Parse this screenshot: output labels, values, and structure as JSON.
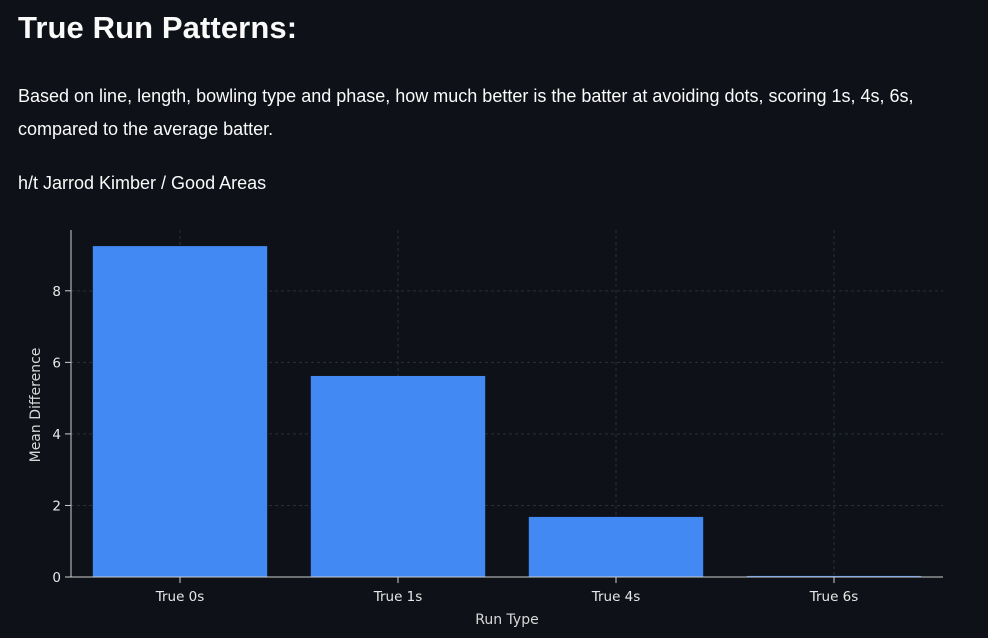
{
  "header": {
    "title": "True Run Patterns:"
  },
  "description": {
    "text": "Based on line, length, bowling type and phase, how much better is the batter at avoiding dots, scoring 1s, 4s, 6s, compared to the average batter.",
    "credit": "h/t Jarrod Kimber / Good Areas"
  },
  "colors": {
    "background": "#0e1117",
    "bar": "#4389f4",
    "grid": "#2a2f38",
    "text": "#fafafa"
  },
  "chart_data": {
    "type": "bar",
    "categories": [
      "True 0s",
      "True 1s",
      "True 4s",
      "True 6s"
    ],
    "values": [
      9.25,
      5.62,
      1.68,
      0.03
    ],
    "xlabel": "Run Type",
    "ylabel": "Mean Difference",
    "yticks": [
      0,
      2,
      4,
      6,
      8
    ],
    "ylim": [
      0,
      9.7
    ],
    "grid": true
  }
}
